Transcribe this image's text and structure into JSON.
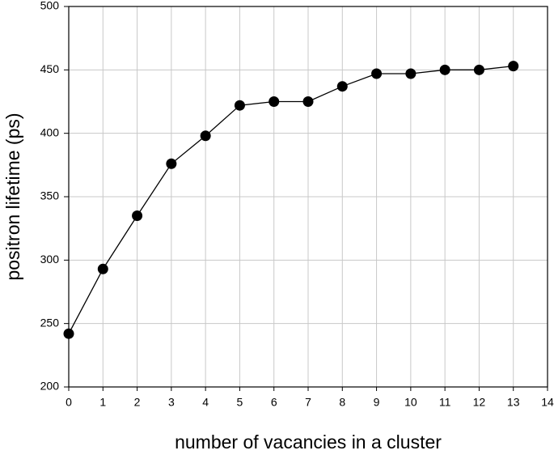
{
  "chart_data": {
    "type": "line",
    "x_label": "number of vacancies in a cluster",
    "y_label": "positron lifetime (ps)",
    "x": [
      0,
      1,
      2,
      3,
      4,
      5,
      6,
      7,
      8,
      9,
      10,
      11,
      12,
      13
    ],
    "series": [
      {
        "color": "#000000",
        "values": [
          242,
          293,
          335,
          376,
          398,
          422,
          425,
          425,
          437,
          447,
          447,
          450,
          450,
          453
        ]
      }
    ],
    "xlim": [
      0,
      14
    ],
    "xticks": [
      0,
      1,
      2,
      3,
      4,
      5,
      6,
      7,
      8,
      9,
      10,
      11,
      12,
      13,
      14
    ],
    "ylim": [
      200,
      500
    ],
    "yticks": [
      200,
      250,
      300,
      350,
      400,
      450,
      500
    ],
    "grid": true
  }
}
